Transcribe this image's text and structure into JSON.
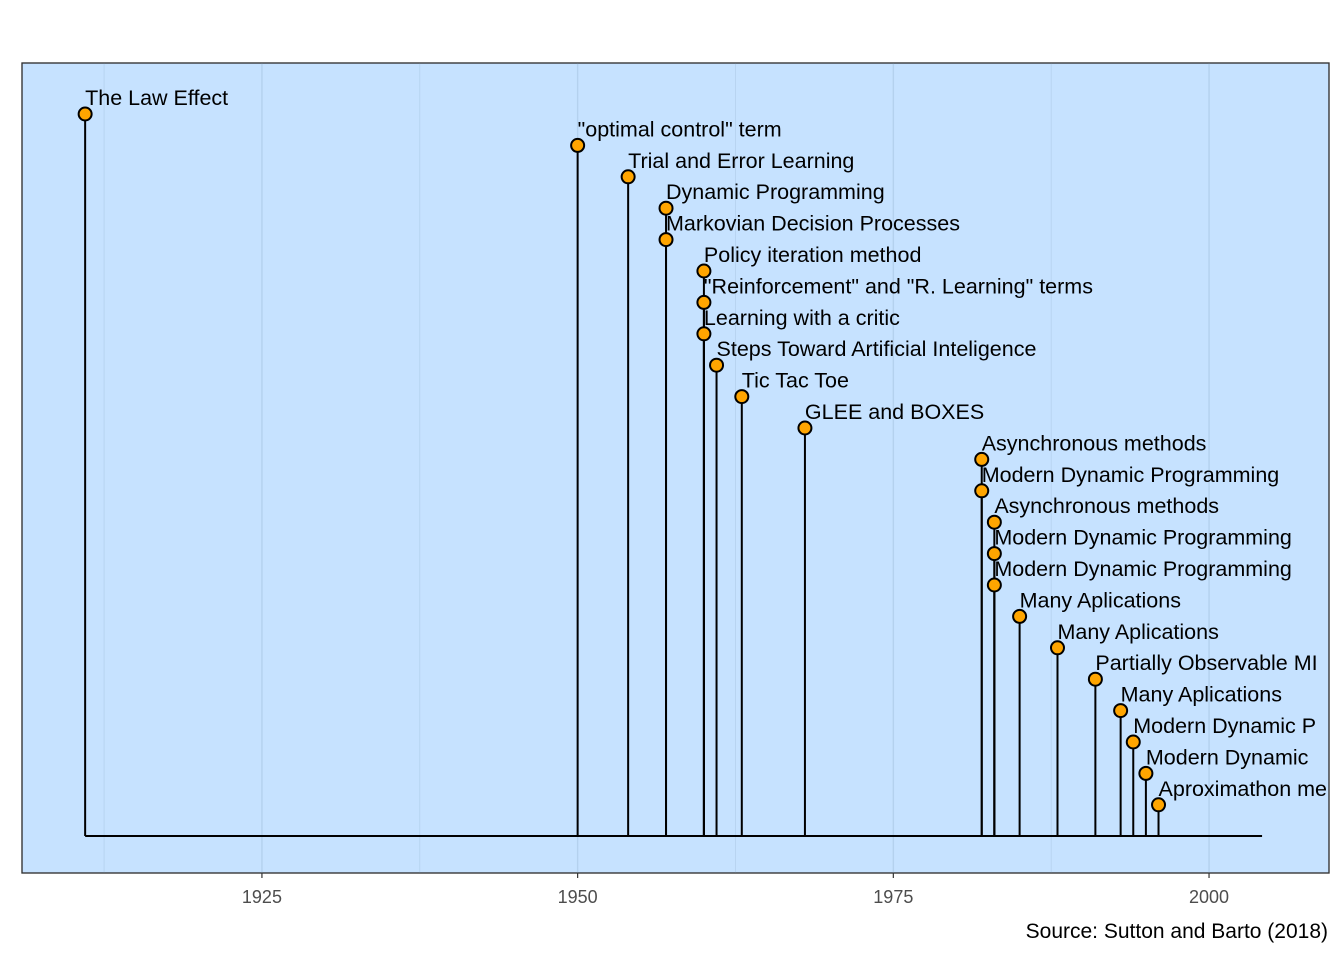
{
  "chart_data": {
    "type": "lollipop-timeline",
    "title": "",
    "xlabel": "",
    "ylabel": "",
    "xlim": [
      1906,
      2009.5
    ],
    "x_ticks": [
      1925,
      1950,
      1975,
      2000
    ],
    "caption": "Source: Sutton and Barto (2018)",
    "grid": "vertical major and minor lines",
    "colors": {
      "panel": "#c6e2ff",
      "grid": "#b4d1ee",
      "point_fill": "#ffa500",
      "point_stroke": "#000000",
      "line": "#000000"
    },
    "events": [
      {
        "year": 1911,
        "label": "The Law Effect"
      },
      {
        "year": 1950,
        "label": "\"optimal control\" term"
      },
      {
        "year": 1954,
        "label": "Trial and Error Learning"
      },
      {
        "year": 1957,
        "label": "Dynamic Programming"
      },
      {
        "year": 1957,
        "label": "Markovian Decision Processes"
      },
      {
        "year": 1960,
        "label": "Policy iteration method"
      },
      {
        "year": 1960,
        "label": "\"Reinforcement\" and \"R. Learning\" terms"
      },
      {
        "year": 1960,
        "label": "Learning with a critic"
      },
      {
        "year": 1961,
        "label": "Steps Toward Artificial Inteligence"
      },
      {
        "year": 1963,
        "label": "Tic Tac Toe"
      },
      {
        "year": 1968,
        "label": "GLEE and BOXES"
      },
      {
        "year": 1982,
        "label": "Asynchronous methods"
      },
      {
        "year": 1982,
        "label": "Modern Dynamic Programming"
      },
      {
        "year": 1983,
        "label": "Asynchronous methods"
      },
      {
        "year": 1983,
        "label": "Modern Dynamic Programming"
      },
      {
        "year": 1983,
        "label": "Modern Dynamic Programming"
      },
      {
        "year": 1985,
        "label": "Many Aplications"
      },
      {
        "year": 1988,
        "label": "Many Aplications"
      },
      {
        "year": 1991,
        "label": "Partially Observable MI"
      },
      {
        "year": 1993,
        "label": "Many Aplications"
      },
      {
        "year": 1994,
        "label": "Modern Dynamic P"
      },
      {
        "year": 1995,
        "label": "Modern Dynamic"
      },
      {
        "year": 1996,
        "label": "Aproximathon me"
      }
    ]
  }
}
